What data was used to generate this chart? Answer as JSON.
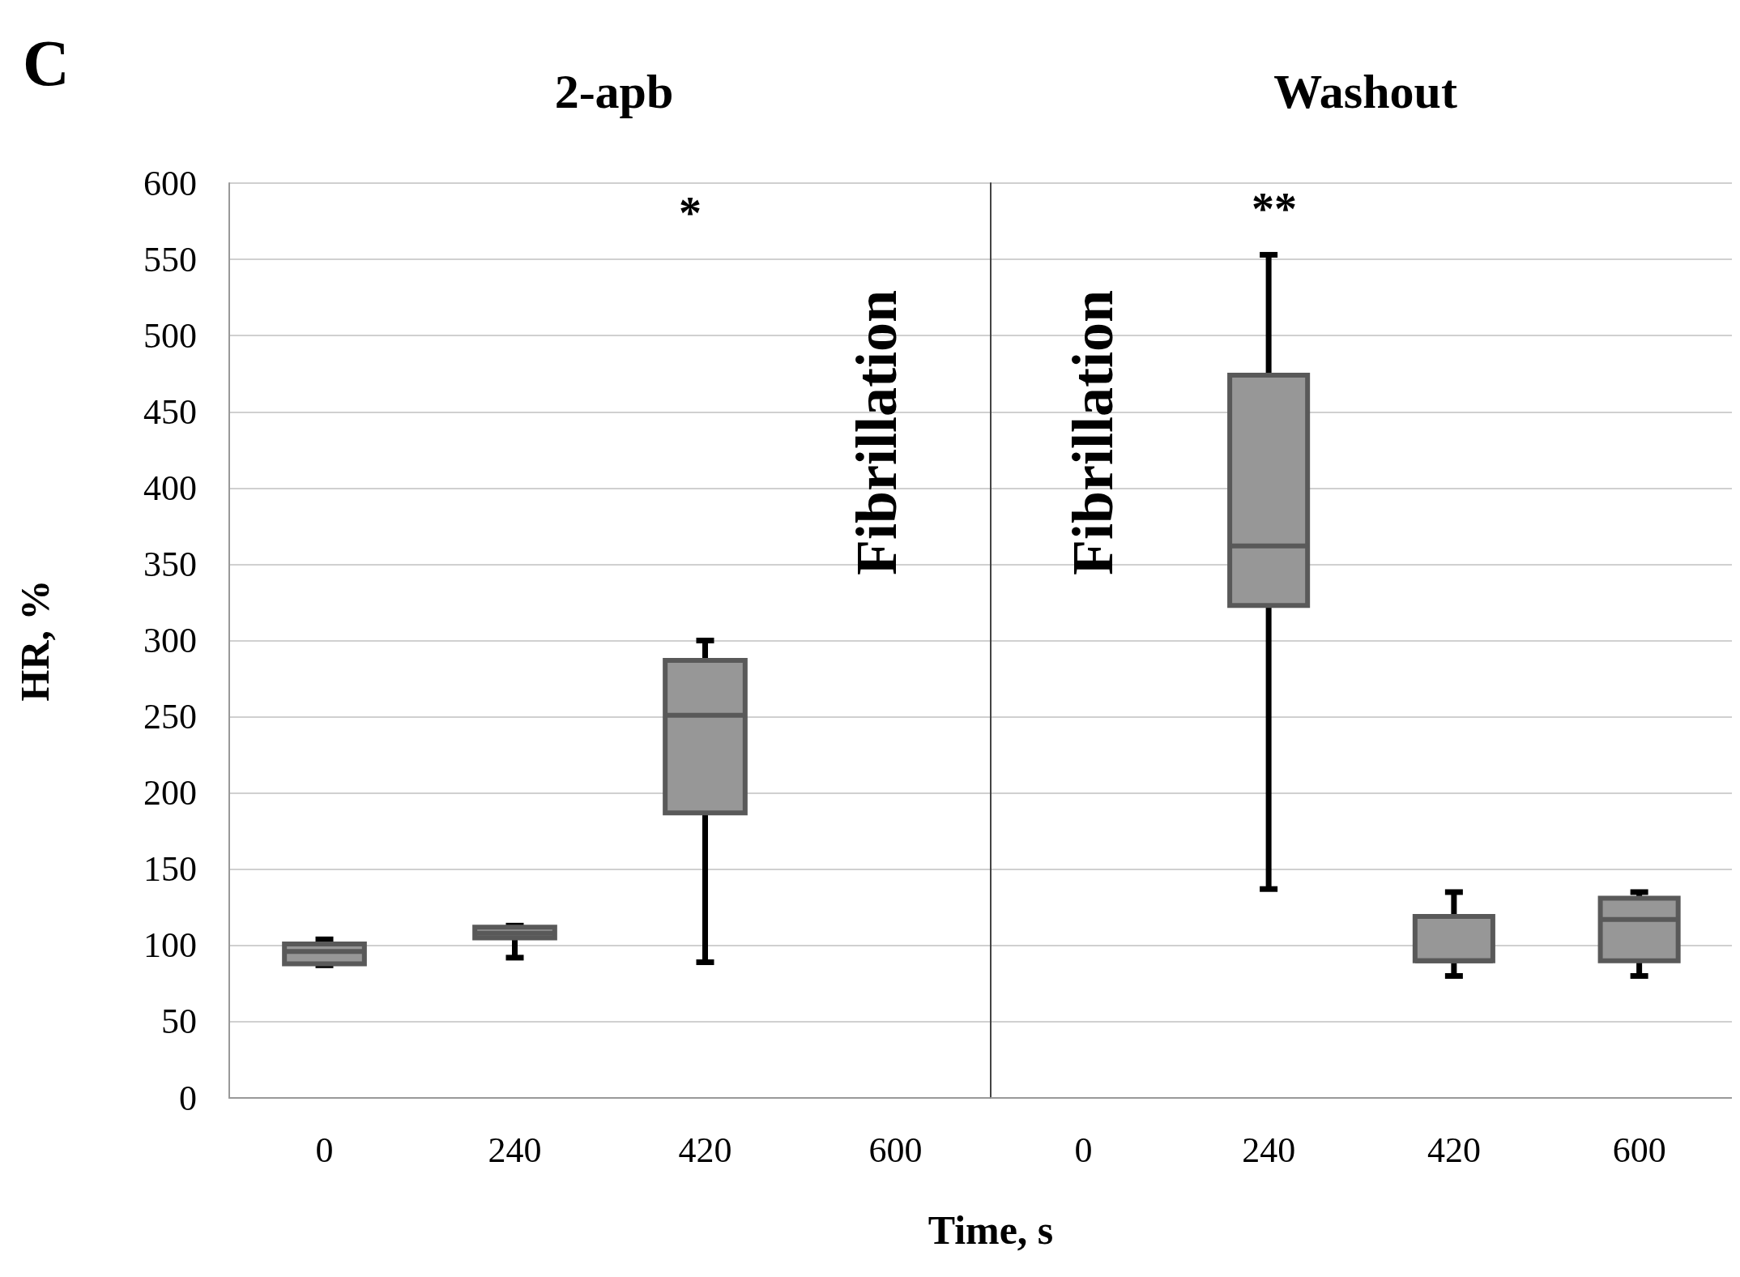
{
  "chart_data": [
    {
      "type": "box",
      "title": "2-apb",
      "ylabel": "HR, %",
      "categories": [
        "0",
        "240",
        "420",
        "600"
      ],
      "ylim": [
        0,
        600
      ],
      "yticks": [
        0,
        50,
        100,
        150,
        200,
        250,
        300,
        350,
        400,
        450,
        500,
        550,
        600
      ],
      "grid": "y",
      "series": [
        {
          "color": "#979797",
          "boxes": [
            {
              "low": 87,
              "q1": 88,
              "median": 96,
              "q3": 101,
              "high": 104
            },
            {
              "low": 92,
              "q1": 105,
              "median": 108,
              "q3": 112,
              "high": 113
            },
            {
              "low": 89,
              "q1": 187,
              "median": 251,
              "q3": 287,
              "high": 300
            },
            null
          ]
        }
      ],
      "annotations": [
        "C",
        "*",
        "Fibrillation"
      ]
    },
    {
      "type": "box",
      "title": "Washout",
      "xlabel": "Time, s",
      "categories": [
        "0",
        "240",
        "420",
        "600"
      ],
      "ylim": [
        0,
        600
      ],
      "yticks": [
        0,
        50,
        100,
        150,
        200,
        250,
        300,
        350,
        400,
        450,
        500,
        550,
        600
      ],
      "grid": "y",
      "tick_labels": "x",
      "series": [
        {
          "color": "#979797",
          "boxes": [
            null,
            {
              "low": 137,
              "q1": 323,
              "median": 362,
              "q3": 474,
              "high": 553
            },
            {
              "low": 80,
              "q1": 90,
              "median": 90,
              "q3": 119,
              "high": 135
            },
            {
              "low": 80,
              "q1": 90,
              "median": 117,
              "q3": 131,
              "high": 135
            }
          ]
        }
      ],
      "annotations": [
        "**",
        "Fibrillation"
      ]
    }
  ]
}
